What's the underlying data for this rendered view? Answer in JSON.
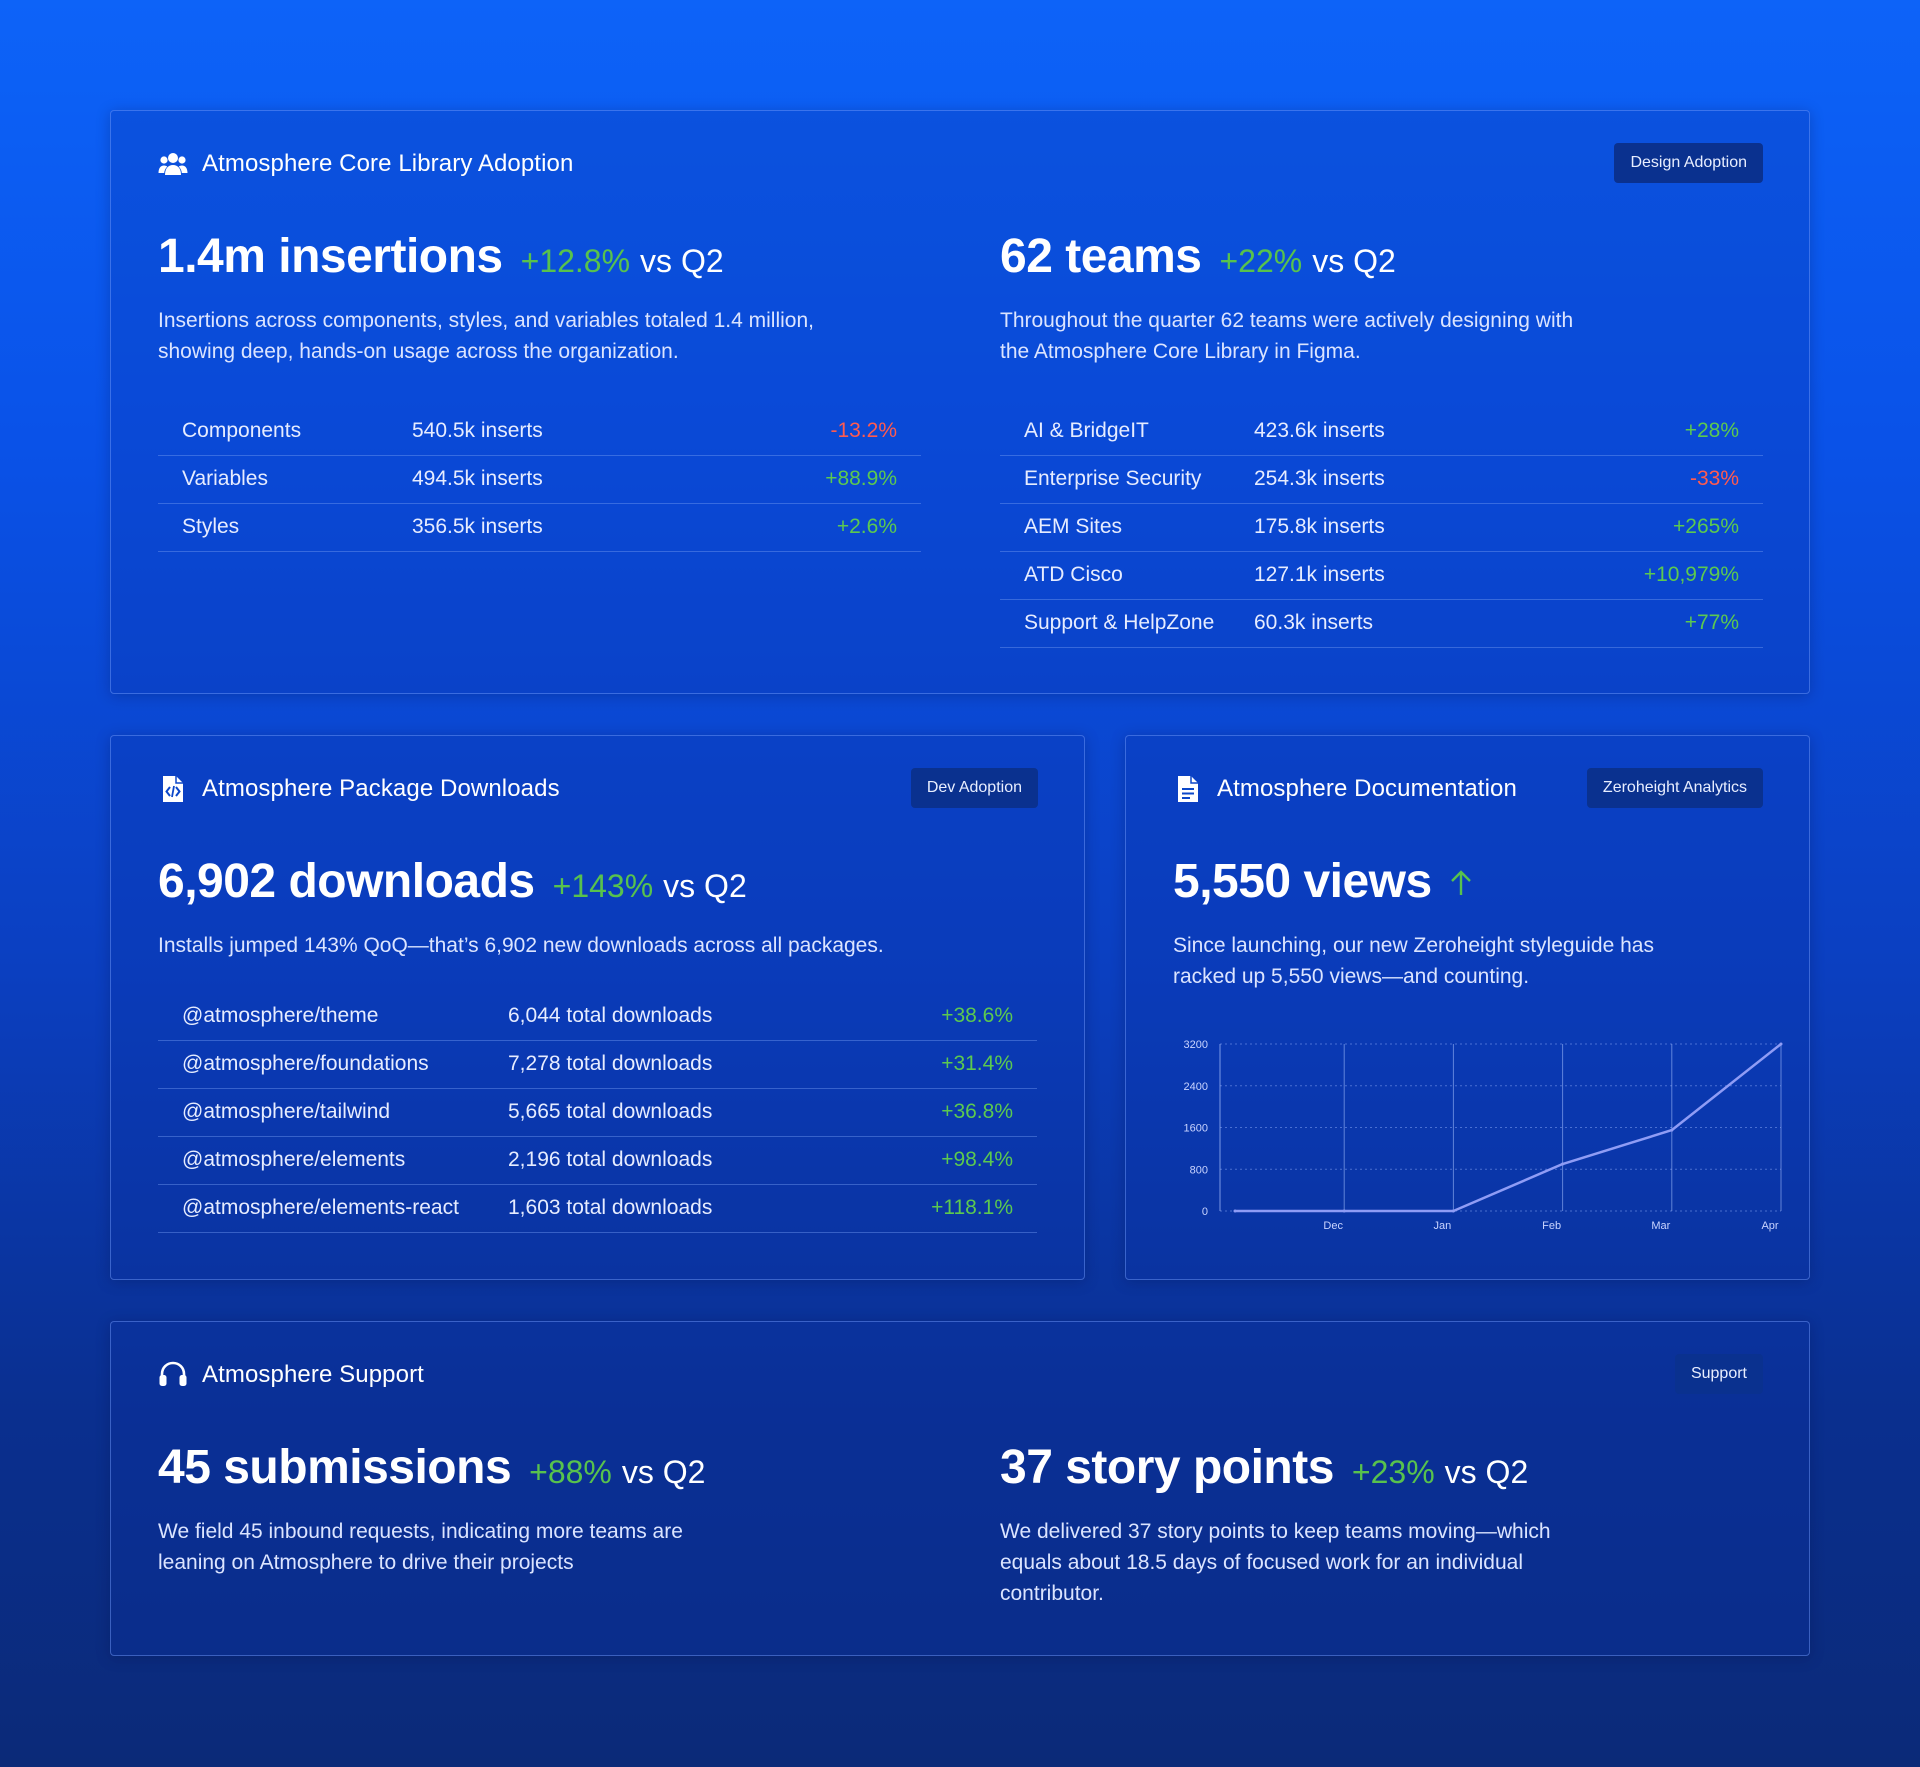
{
  "core": {
    "title": "Atmosphere Core Library Adoption",
    "badge": "Design Adoption",
    "insertions": {
      "value": "1.4m insertions",
      "change": "+12.8%",
      "vs": "vs Q2",
      "desc_line1": "Insertions across components, styles, and variables totaled 1.4 million,",
      "desc_line2": "showing deep, hands-on usage across the organization.",
      "rows": [
        {
          "name": "Components",
          "value": "540.5k inserts",
          "change": "-13.2%"
        },
        {
          "name": "Variables",
          "value": "494.5k inserts",
          "change": "+88.9%"
        },
        {
          "name": "Styles",
          "value": "356.5k inserts",
          "change": "+2.6%"
        }
      ]
    },
    "teams": {
      "value": "62 teams",
      "change": "+22%",
      "vs": "vs Q2",
      "desc_line1": "Throughout the quarter 62 teams were actively designing with",
      "desc_line2": "the Atmosphere Core Library in Figma.",
      "rows": [
        {
          "name": "AI & BridgeIT",
          "value": "423.6k inserts",
          "change": "+28%"
        },
        {
          "name": "Enterprise Security",
          "value": "254.3k inserts",
          "change": "-33%"
        },
        {
          "name": "AEM Sites",
          "value": "175.8k inserts",
          "change": "+265%"
        },
        {
          "name": "ATD Cisco",
          "value": "127.1k inserts",
          "change": "+10,979%"
        },
        {
          "name": "Support & HelpZone",
          "value": "60.3k inserts",
          "change": "+77%"
        }
      ]
    }
  },
  "downloads": {
    "title": "Atmosphere Package Downloads",
    "badge": "Dev Adoption",
    "value": "6,902 downloads",
    "change": "+143%",
    "vs": "vs Q2",
    "desc": "Installs jumped 143% QoQ—that’s 6,902 new downloads across all packages.",
    "rows": [
      {
        "name": "@atmosphere/theme",
        "value": "6,044 total downloads",
        "change": "+38.6%"
      },
      {
        "name": "@atmosphere/foundations",
        "value": "7,278 total downloads",
        "change": "+31.4%"
      },
      {
        "name": "@atmosphere/tailwind",
        "value": "5,665 total downloads",
        "change": "+36.8%"
      },
      {
        "name": "@atmosphere/elements",
        "value": "2,196 total downloads",
        "change": "+98.4%"
      },
      {
        "name": "@atmosphere/elements-react",
        "value": "1,603 total downloads",
        "change": "+118.1%"
      }
    ]
  },
  "docs": {
    "title": "Atmosphere Documentation",
    "badge": "Zeroheight Analytics",
    "value": "5,550 views",
    "desc_line1": "Since launching, our new Zeroheight styleguide has",
    "desc_line2": "racked up 5,550 views—and counting."
  },
  "chart_data": {
    "type": "line",
    "title": "",
    "xlabel": "",
    "ylabel": "",
    "x": [
      "",
      "Dec",
      "Jan",
      "Feb",
      "Mar",
      "Apr"
    ],
    "values": [
      0,
      0,
      0,
      900,
      1550,
      3200
    ],
    "ylim": [
      0,
      3200
    ],
    "yticks": [
      "0",
      "800",
      "1600",
      "2400",
      "3200"
    ],
    "xticks": [
      "Dec",
      "Jan",
      "Feb",
      "Mar",
      "Apr"
    ],
    "grid": true,
    "line_color": "#8f9cf5"
  },
  "support": {
    "title": "Atmosphere Support",
    "badge": "Support",
    "submissions": {
      "value": "45 submissions",
      "change": "+88%",
      "vs": "vs Q2",
      "desc_line1": "We field 45 inbound requests, indicating more teams are",
      "desc_line2": "leaning on Atmosphere to drive their projects"
    },
    "story": {
      "value": "37 story points",
      "change": "+23%",
      "vs": "vs Q2",
      "desc_line1": "We delivered 37 story points to keep teams moving—which",
      "desc_line2": "equals about 18.5 days of focused work for an individual",
      "desc_line3": "contributor."
    }
  },
  "colors": {
    "positive": "#5cc94f",
    "negative": "#ff5b4f",
    "badge_bg": "#0a318f"
  },
  "icons": {
    "core": "people-group-icon",
    "downloads": "code-file-icon",
    "docs": "document-icon",
    "support": "headset-icon",
    "docs_trend": "arrow-up-icon"
  }
}
